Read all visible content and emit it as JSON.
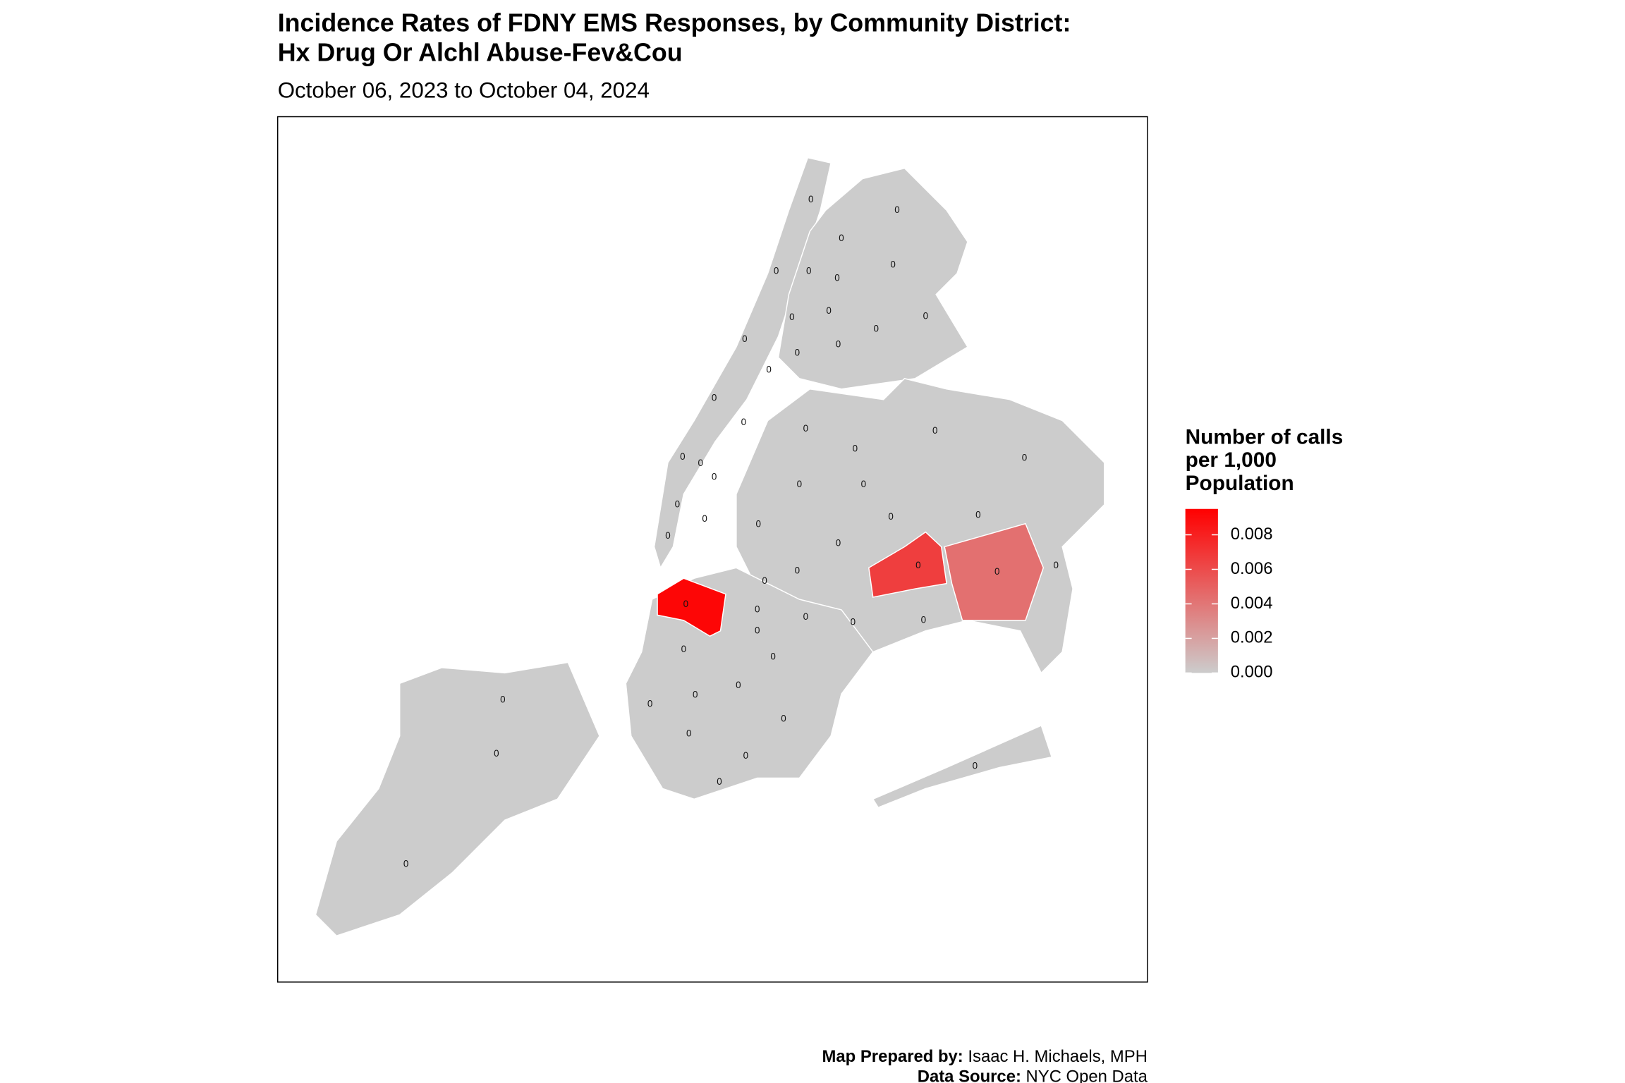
{
  "title_lines": [
    "Incidence Rates of FDNY EMS Responses, by Community District:",
    "Hx Drug Or Alchl Abuse-Fev&Cou"
  ],
  "subtitle": "October 06, 2023 to October 04, 2024",
  "legend": {
    "title_lines": [
      "Number of calls",
      "per 1,000",
      "Population"
    ],
    "low_color": "#cccccc",
    "high_color": "#ff0000",
    "lim": [
      0,
      0.0095
    ],
    "ticks": [
      {
        "value": 0,
        "label": "0.000"
      },
      {
        "value": 0.002,
        "label": "0.002"
      },
      {
        "value": 0.004,
        "label": "0.004"
      },
      {
        "value": 0.006,
        "label": "0.006"
      },
      {
        "value": 0.008,
        "label": "0.008"
      }
    ]
  },
  "districts": [
    {
      "label": "0"
    },
    {
      "label": "0"
    },
    {
      "label": "0"
    },
    {
      "label": "0"
    },
    {
      "label": "0"
    },
    {
      "label": "0"
    },
    {
      "label": "0"
    },
    {
      "label": "0"
    },
    {
      "label": "0"
    },
    {
      "label": "0"
    },
    {
      "label": "0"
    },
    {
      "label": "0"
    },
    {
      "label": "0"
    },
    {
      "label": "0"
    },
    {
      "label": "0"
    },
    {
      "label": "0"
    },
    {
      "label": "0"
    },
    {
      "label": "0"
    },
    {
      "label": "0"
    },
    {
      "label": "0"
    },
    {
      "label": "0"
    },
    {
      "label": "0"
    },
    {
      "label": "0"
    },
    {
      "label": "0"
    },
    {
      "label": "0"
    },
    {
      "label": "0"
    },
    {
      "label": "0"
    },
    {
      "label": "0"
    },
    {
      "label": "0"
    },
    {
      "label": "0"
    },
    {
      "label": "0"
    },
    {
      "label": "0"
    },
    {
      "label": "0"
    },
    {
      "label": "0"
    },
    {
      "label": "0"
    },
    {
      "label": "0",
      "value": 0.0066
    },
    {
      "label": "0",
      "value": 0.0043
    },
    {
      "label": "0"
    },
    {
      "label": "0",
      "value": 0.0092
    },
    {
      "label": "0"
    },
    {
      "label": "0"
    },
    {
      "label": "0"
    },
    {
      "label": "0"
    },
    {
      "label": "0"
    },
    {
      "label": "0"
    },
    {
      "label": "0"
    },
    {
      "label": "0"
    },
    {
      "label": "0"
    },
    {
      "label": "0"
    },
    {
      "label": "0"
    },
    {
      "label": "0"
    },
    {
      "label": "0"
    },
    {
      "label": "0"
    },
    {
      "label": "0"
    },
    {
      "label": "0"
    },
    {
      "label": "0"
    },
    {
      "label": "0"
    }
  ],
  "caption": [
    {
      "bold": "Map Prepared by:",
      "text": " Isaac H. Michaels, MPH"
    },
    {
      "bold": "Data Source:",
      "text": " NYC Open Data"
    }
  ]
}
